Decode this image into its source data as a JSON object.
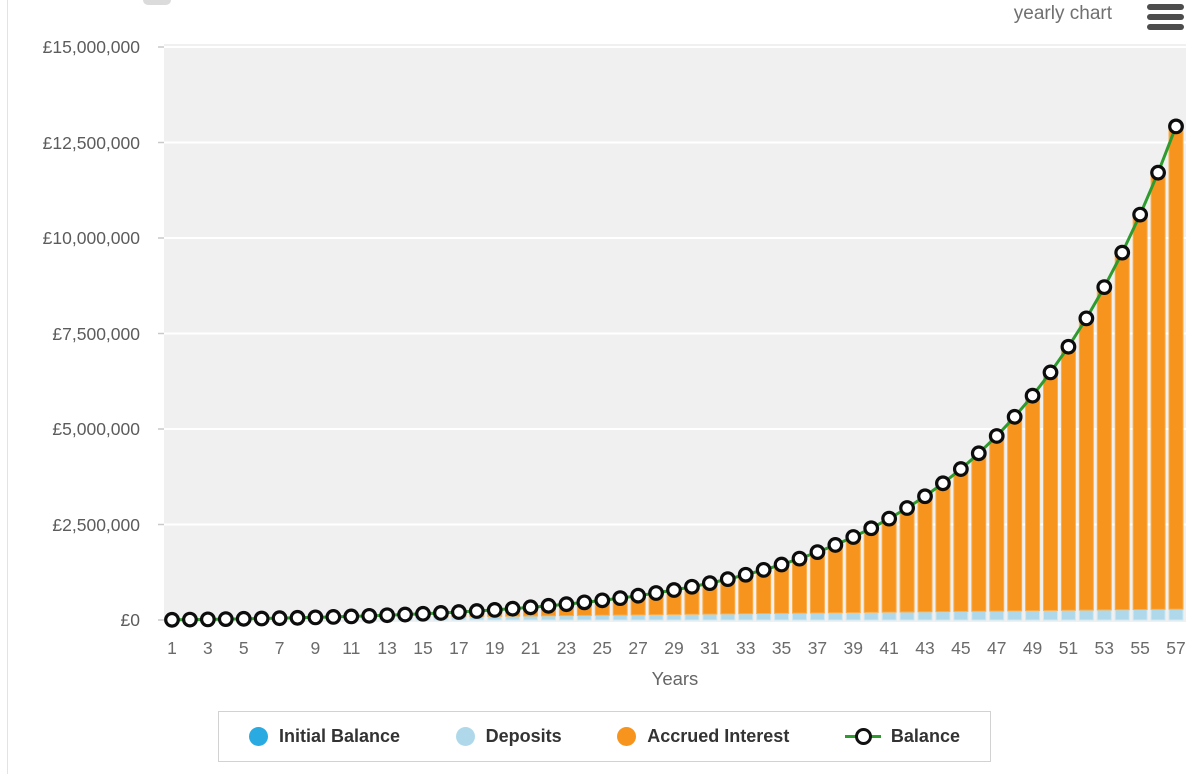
{
  "header": {
    "view_label": "yearly chart",
    "menu_icon": "hamburger-icon"
  },
  "chart_data": {
    "type": "bar",
    "stacked": true,
    "title": "",
    "xlabel": "Years",
    "ylabel": "",
    "currency": "£",
    "ylim": [
      0,
      15000000
    ],
    "y_tick_step": 2500000,
    "y_tick_labels": [
      "£0",
      "£2,500,000",
      "£5,000,000",
      "£7,500,000",
      "£10,000,000",
      "£12,500,000",
      "£15,000,000"
    ],
    "x_tick_step": 2,
    "grid_on": true,
    "plot_bg": "#f0f0f0",
    "grid_color": "#ffffff",
    "tick_color": "#c9c9c9",
    "years": [
      1,
      2,
      3,
      4,
      5,
      6,
      7,
      8,
      9,
      10,
      11,
      12,
      13,
      14,
      15,
      16,
      17,
      18,
      19,
      20,
      21,
      22,
      23,
      24,
      25,
      26,
      27,
      28,
      29,
      30,
      31,
      32,
      33,
      34,
      35,
      36,
      37,
      38,
      39,
      40,
      41,
      42,
      43,
      44,
      45,
      46,
      47,
      48,
      49,
      50,
      51,
      52,
      53,
      54,
      55,
      56,
      57
    ],
    "series": [
      {
        "name": "Initial Balance",
        "color": "#29ABE2",
        "edge": "#55BDE9",
        "values": [
          0,
          0,
          0,
          0,
          0,
          0,
          0,
          0,
          0,
          0,
          0,
          0,
          0,
          0,
          0,
          0,
          0,
          0,
          0,
          0,
          0,
          0,
          0,
          0,
          0,
          0,
          0,
          0,
          0,
          0,
          0,
          0,
          0,
          0,
          0,
          0,
          0,
          0,
          0,
          0,
          0,
          0,
          0,
          0,
          0,
          0,
          0,
          0,
          0,
          0,
          0,
          0,
          0,
          0,
          0,
          0,
          0
        ]
      },
      {
        "name": "Deposits",
        "color": "#AFD9EA",
        "edge": "#CEE9F4",
        "values": [
          5000,
          10000,
          15000,
          20000,
          25000,
          30000,
          35000,
          40000,
          45000,
          50000,
          55000,
          60000,
          65000,
          70000,
          75000,
          80000,
          85000,
          90000,
          95000,
          100000,
          105000,
          110000,
          115000,
          120000,
          125000,
          130000,
          135000,
          140000,
          145000,
          150000,
          155000,
          160000,
          165000,
          170000,
          175000,
          180000,
          185000,
          190000,
          195000,
          200000,
          205000,
          210000,
          215000,
          220000,
          225000,
          230000,
          235000,
          240000,
          245000,
          250000,
          255000,
          260000,
          265000,
          270000,
          275000,
          280000,
          285000
        ]
      },
      {
        "name": "Accrued Interest",
        "color": "#F7941E",
        "edge": "#FBAE4C",
        "values": [
          0,
          515,
          1598,
          3308,
          5709,
          8872,
          12876,
          17807,
          23761,
          30843,
          39170,
          48870,
          60084,
          72968,
          87694,
          104451,
          123450,
          144920,
          169117,
          196321,
          226842,
          261022,
          299237,
          341903,
          389479,
          442470,
          501434,
          566987,
          639807,
          720642,
          810318,
          909746,
          1019930,
          1141978,
          1277112,
          1426680,
          1592168,
          1775216,
          1977633,
          2201414,
          2448760,
          2722097,
          3024103,
          3357731,
          3726237,
          4133214,
          4582625,
          5078840,
          5626681,
          6231464,
          6899055,
          7635923,
          8449203,
          9346766,
          10337293,
          11430359,
          12636526
        ]
      }
    ],
    "line_series": {
      "name": "Balance",
      "line_color": "#2E9B2E",
      "marker": "open-circle",
      "marker_color": "#0d0d0d",
      "marker_fill": "#ffffff",
      "values": [
        5000,
        10515,
        16598,
        23308,
        30709,
        38872,
        47876,
        57807,
        68761,
        80843,
        94170,
        108870,
        125084,
        142968,
        162694,
        184451,
        208450,
        234920,
        264117,
        296321,
        331842,
        371022,
        414237,
        461903,
        514479,
        572470,
        636434,
        706987,
        784807,
        870642,
        965318,
        1069746,
        1184930,
        1311978,
        1452112,
        1606680,
        1777168,
        1965216,
        2172633,
        2401414,
        2653760,
        2932097,
        3239103,
        3577731,
        3951237,
        4363214,
        4817625,
        5318840,
        5871681,
        6481464,
        7154055,
        7895923,
        8714203,
        9616766,
        10612293,
        11710359,
        12921526
      ]
    },
    "legend": {
      "position": "bottom",
      "entries": [
        {
          "label": "Initial Balance",
          "color": "#29ABE2",
          "type": "dot"
        },
        {
          "label": "Deposits",
          "color": "#AFD9EA",
          "type": "dot"
        },
        {
          "label": "Accrued Interest",
          "color": "#F7941E",
          "type": "dot"
        },
        {
          "label": "Balance",
          "color": "#0d0d0d",
          "line_color": "#2E9B2E",
          "type": "line-marker"
        }
      ]
    }
  }
}
